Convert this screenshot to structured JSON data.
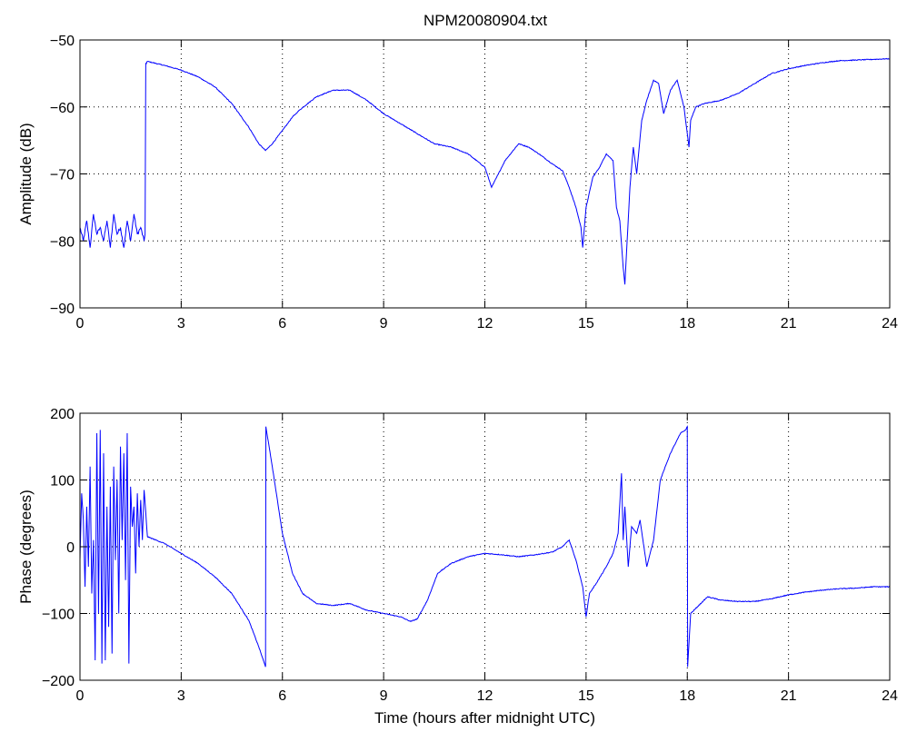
{
  "title": "NPM20080904.txt",
  "colors": {
    "trace": "#0000ff",
    "axes": "#000000",
    "grid": "#000000",
    "background": "#ffffff"
  },
  "chart_data": [
    {
      "type": "line",
      "title": "NPM20080904.txt",
      "ylabel": "Amplitude (dB)",
      "xlabel": "",
      "xlim": [
        0,
        24
      ],
      "ylim": [
        -90,
        -50
      ],
      "xticks": [
        0,
        3,
        6,
        9,
        12,
        15,
        18,
        21,
        24
      ],
      "yticks": [
        -90,
        -80,
        -70,
        -60,
        -50
      ],
      "grid": true,
      "series": [
        {
          "color": "#0000ff",
          "x": [
            0,
            0.1,
            0.2,
            0.3,
            0.4,
            0.5,
            0.6,
            0.7,
            0.8,
            0.9,
            1.0,
            1.1,
            1.2,
            1.3,
            1.4,
            1.5,
            1.6,
            1.7,
            1.8,
            1.9,
            1.93,
            1.95,
            2.0,
            2.5,
            3.0,
            3.5,
            4.0,
            4.5,
            5.0,
            5.3,
            5.5,
            5.7,
            6.0,
            6.3,
            6.5,
            7.0,
            7.5,
            8.0,
            8.5,
            9.0,
            9.5,
            10.0,
            10.5,
            11.0,
            11.5,
            12.0,
            12.2,
            12.4,
            12.6,
            13.0,
            13.3,
            13.6,
            14.0,
            14.3,
            14.5,
            14.7,
            14.85,
            14.9,
            15.0,
            15.2,
            15.4,
            15.6,
            15.8,
            15.9,
            16.0,
            16.1,
            16.15,
            16.3,
            16.4,
            16.5,
            16.65,
            16.8,
            17.0,
            17.15,
            17.3,
            17.5,
            17.7,
            17.9,
            18.05,
            18.1,
            18.25,
            18.5,
            19.0,
            19.5,
            20.0,
            20.5,
            21.0,
            21.5,
            22.0,
            22.5,
            23.0,
            23.5,
            24.0
          ],
          "y": [
            -78,
            -80,
            -77,
            -81,
            -76,
            -79,
            -78,
            -80,
            -77,
            -81,
            -76,
            -79,
            -78,
            -81,
            -77,
            -80,
            -76,
            -79,
            -78,
            -80,
            -79,
            -53.5,
            -53.2,
            -53.8,
            -54.5,
            -55.5,
            -57,
            -59.5,
            -63,
            -65.5,
            -66.5,
            -65.5,
            -63.5,
            -61.5,
            -60.5,
            -58.5,
            -57.5,
            -57.5,
            -59,
            -61,
            -62.5,
            -64,
            -65.5,
            -66,
            -67,
            -69,
            -72,
            -70,
            -68,
            -65.5,
            -66,
            -67,
            -68.5,
            -69.5,
            -72,
            -75,
            -78,
            -81,
            -75,
            -70.5,
            -69,
            -67,
            -68,
            -75,
            -77,
            -84,
            -86.5,
            -72,
            -66,
            -70,
            -62,
            -59,
            -56,
            -56.5,
            -61,
            -57.5,
            -56,
            -60,
            -66,
            -62,
            -60,
            -59.5,
            -59,
            -58,
            -56.5,
            -55,
            -54.3,
            -53.8,
            -53.4,
            -53.1,
            -53,
            -52.9,
            -52.8
          ]
        }
      ]
    },
    {
      "type": "line",
      "title": "",
      "ylabel": "Phase (degrees)",
      "xlabel": "Time (hours after midnight UTC)",
      "xlim": [
        0,
        24
      ],
      "ylim": [
        -200,
        200
      ],
      "xticks": [
        0,
        3,
        6,
        9,
        12,
        15,
        18,
        21,
        24
      ],
      "yticks": [
        -200,
        -100,
        0,
        100,
        200
      ],
      "grid": true,
      "series": [
        {
          "color": "#0000ff",
          "x": [
            0,
            0.05,
            0.1,
            0.15,
            0.2,
            0.25,
            0.3,
            0.35,
            0.4,
            0.45,
            0.5,
            0.55,
            0.6,
            0.65,
            0.7,
            0.75,
            0.8,
            0.85,
            0.9,
            0.95,
            1.0,
            1.05,
            1.1,
            1.15,
            1.2,
            1.25,
            1.3,
            1.35,
            1.4,
            1.45,
            1.5,
            1.55,
            1.6,
            1.65,
            1.7,
            1.75,
            1.8,
            1.85,
            1.9,
            2.0,
            2.5,
            3.0,
            3.5,
            4.0,
            4.5,
            5.0,
            5.3,
            5.5,
            5.51,
            5.7,
            6.0,
            6.3,
            6.6,
            7.0,
            7.5,
            8.0,
            8.5,
            9.0,
            9.5,
            9.8,
            10.0,
            10.3,
            10.6,
            11.0,
            11.5,
            12.0,
            12.5,
            13.0,
            13.5,
            14.0,
            14.3,
            14.5,
            14.7,
            14.9,
            15.0,
            15.1,
            15.3,
            15.6,
            15.8,
            15.95,
            16.05,
            16.1,
            16.15,
            16.25,
            16.35,
            16.5,
            16.6,
            16.8,
            17.0,
            17.2,
            17.5,
            17.8,
            17.95,
            18.0,
            18.01,
            18.1,
            18.3,
            18.6,
            19.0,
            19.5,
            20.0,
            20.5,
            21.0,
            21.5,
            22.0,
            22.5,
            23.0,
            23.5,
            24.0
          ],
          "y": [
            -20,
            80,
            40,
            -60,
            60,
            -30,
            120,
            -70,
            10,
            -170,
            170,
            -100,
            175,
            -175,
            140,
            -170,
            60,
            -120,
            90,
            -160,
            120,
            -20,
            100,
            -100,
            150,
            10,
            140,
            -50,
            170,
            -175,
            90,
            30,
            60,
            -40,
            80,
            0,
            70,
            10,
            85,
            15,
            5,
            -10,
            -25,
            -45,
            -70,
            -110,
            -150,
            -180,
            180,
            120,
            20,
            -40,
            -70,
            -85,
            -88,
            -85,
            -95,
            -100,
            -105,
            -112,
            -108,
            -80,
            -40,
            -25,
            -15,
            -10,
            -12,
            -15,
            -12,
            -8,
            0,
            10,
            -20,
            -60,
            -105,
            -70,
            -55,
            -30,
            -10,
            20,
            110,
            10,
            60,
            -30,
            30,
            20,
            40,
            -30,
            10,
            100,
            140,
            170,
            175,
            180,
            -180,
            -100,
            -90,
            -75,
            -80,
            -82,
            -82,
            -78,
            -72,
            -68,
            -65,
            -63,
            -62,
            -60,
            -60
          ]
        }
      ]
    }
  ]
}
